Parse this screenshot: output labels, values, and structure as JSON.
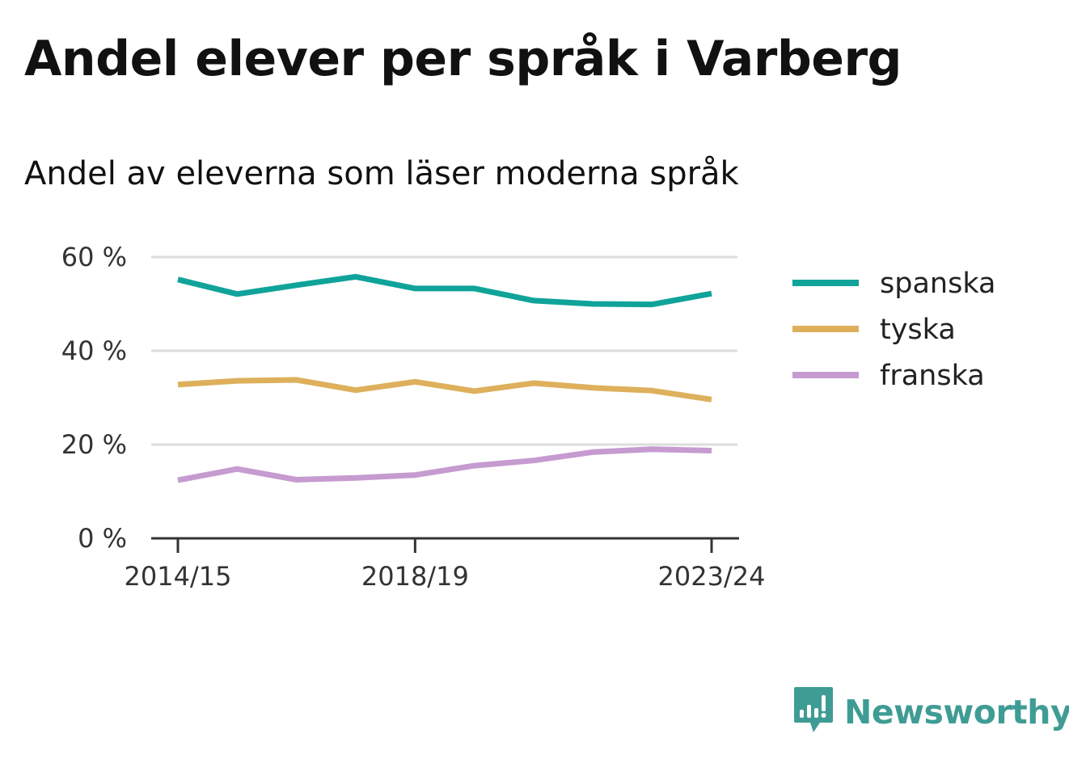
{
  "title": "Andel elever per språk i Varberg",
  "subtitle": "Andel av eleverna som läser moderna språk",
  "brand": {
    "name": "Newsworthy",
    "color": "#3f9c94",
    "icon": "newsworthy-logo-icon"
  },
  "chart_data": {
    "type": "line",
    "x": [
      "2014/15",
      "2015/16",
      "2016/17",
      "2017/18",
      "2018/19",
      "2019/20",
      "2020/21",
      "2021/22",
      "2022/23",
      "2023/24"
    ],
    "x_tick_labels": [
      "2014/15",
      "2018/19",
      "2023/24"
    ],
    "y_tick_labels": [
      "0 %",
      "20 %",
      "40 %",
      "60 %"
    ],
    "y_ticks": [
      0,
      20,
      40,
      60
    ],
    "ylim": [
      0,
      60
    ],
    "grid": true,
    "legend_position": "right",
    "series": [
      {
        "name": "spanska",
        "color": "#0fa39a",
        "values": [
          55.2,
          52.1,
          54.0,
          55.8,
          53.3,
          53.3,
          50.7,
          50.0,
          49.9,
          52.2
        ]
      },
      {
        "name": "tyska",
        "color": "#deb05c",
        "values": [
          32.8,
          33.6,
          33.8,
          31.6,
          33.4,
          31.4,
          33.1,
          32.1,
          31.5,
          29.6
        ]
      },
      {
        "name": "franska",
        "color": "#c69bd0",
        "values": [
          12.4,
          14.8,
          12.5,
          12.9,
          13.5,
          15.5,
          16.6,
          18.4,
          19.0,
          18.7
        ]
      }
    ]
  }
}
